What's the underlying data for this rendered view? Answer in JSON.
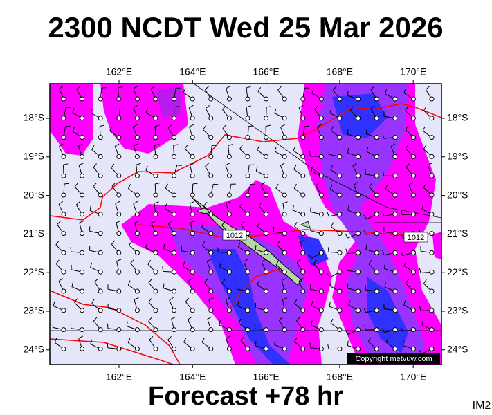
{
  "header": {
    "title": "2300 NCDT Wed 25 Mar 2026"
  },
  "map": {
    "lon_labels": [
      "162°E",
      "164°E",
      "166°E",
      "168°E",
      "170°E"
    ],
    "lat_labels": [
      "18°S",
      "19°S",
      "20°S",
      "21°S",
      "22°S",
      "23°S",
      "24°S"
    ],
    "isobar_labels": [
      "1012",
      "1012"
    ],
    "copyright": "Copyright metvuw.com"
  },
  "footer": {
    "caption": "Forecast +78 hr",
    "id": "IM2"
  }
}
